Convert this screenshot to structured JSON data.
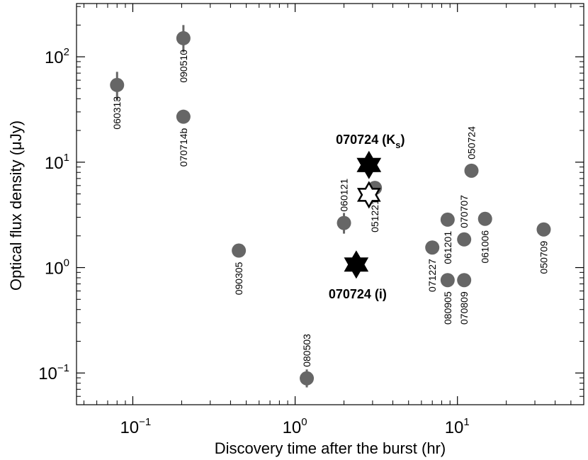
{
  "chart_data": {
    "type": "scatter",
    "xscale": "log",
    "yscale": "log",
    "xlabel": "Discovery time after the burst  (hr)",
    "ylabel": "Optical flux density  (μJy)",
    "xlim": [
      0.045,
      60
    ],
    "ylim": [
      0.05,
      320
    ],
    "xticks": [
      {
        "value": 0.1,
        "base": "10",
        "exp": "−1"
      },
      {
        "value": 1,
        "base": "10",
        "exp": "0"
      },
      {
        "value": 10,
        "base": "10",
        "exp": "1"
      }
    ],
    "yticks": [
      {
        "value": 0.1,
        "base": "10",
        "exp": "−1"
      },
      {
        "value": 1,
        "base": "10",
        "exp": "0"
      },
      {
        "value": 10,
        "base": "10",
        "exp": "1"
      },
      {
        "value": 100,
        "base": "10",
        "exp": "2"
      }
    ],
    "points": [
      {
        "label": "060313",
        "x": 0.08,
        "y": 54,
        "err": [
          38,
          72
        ],
        "label_side": "below"
      },
      {
        "label": "090510",
        "x": 0.205,
        "y": 150,
        "err": [
          110,
          200
        ],
        "label_side": "below"
      },
      {
        "label": "070714b",
        "x": 0.205,
        "y": 27,
        "err": [
          24,
          31
        ],
        "label_side": "below"
      },
      {
        "label": "090305",
        "x": 0.45,
        "y": 1.45,
        "err": null,
        "label_side": "below"
      },
      {
        "label": "080503",
        "x": 1.18,
        "y": 0.089,
        "err": [
          0.073,
          0.108
        ],
        "label_side": "above"
      },
      {
        "label": "060121",
        "x": 2.0,
        "y": 2.65,
        "err": [
          2.1,
          3.3
        ],
        "label_side": "above"
      },
      {
        "label": "051221",
        "x": 3.1,
        "y": 5.7,
        "err": null,
        "label_side": "below"
      },
      {
        "label": "071227",
        "x": 7.0,
        "y": 1.55,
        "err": null,
        "label_side": "below"
      },
      {
        "label": "061201",
        "x": 8.7,
        "y": 2.85,
        "err": null,
        "label_side": "below"
      },
      {
        "label": "080905",
        "x": 8.7,
        "y": 0.76,
        "err": null,
        "label_side": "below"
      },
      {
        "label": "070707",
        "x": 11.0,
        "y": 1.85,
        "err": null,
        "label_side": "above"
      },
      {
        "label": "070809",
        "x": 11.0,
        "y": 0.76,
        "err": null,
        "label_side": "below"
      },
      {
        "label": "050724",
        "x": 12.2,
        "y": 8.3,
        "err": null,
        "label_side": "above"
      },
      {
        "label": "061006",
        "x": 14.8,
        "y": 2.9,
        "err": null,
        "label_side": "below"
      },
      {
        "label": "050709",
        "x": 34.0,
        "y": 2.3,
        "err": null,
        "label_side": "below"
      }
    ],
    "stars": [
      {
        "x": 2.85,
        "y": 9.4,
        "style": "filled"
      },
      {
        "x": 2.85,
        "y": 4.9,
        "style": "open"
      },
      {
        "x": 2.38,
        "y": 1.07,
        "style": "filled"
      }
    ],
    "annotations": [
      {
        "text": "070724 (K",
        "sub": "s",
        "tail": ")",
        "x": 2.85,
        "y": 9.4,
        "pos": "above"
      },
      {
        "text": "070724 (i)",
        "sub": "",
        "tail": "",
        "x": 2.38,
        "y": 1.07,
        "pos": "below"
      }
    ],
    "colors": {
      "point": "#666666",
      "star": "#000000",
      "axis": "#000000",
      "background": "#ffffff"
    }
  }
}
